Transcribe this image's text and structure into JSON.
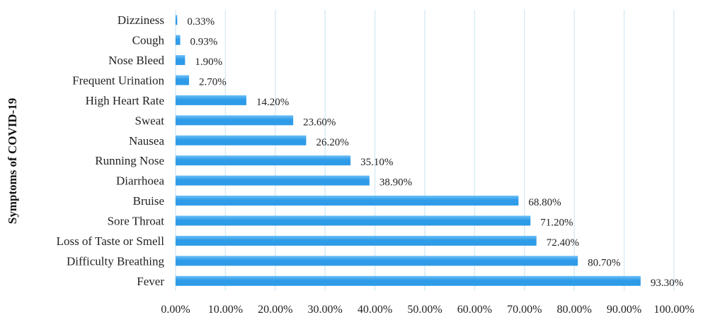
{
  "chart_data": {
    "type": "bar",
    "orientation": "horizontal",
    "title": "",
    "xlabel": "",
    "ylabel": "Symptoms of COVID-19",
    "categories": [
      "Fever",
      "Difficulty Breathing",
      "Loss of Taste or Smell",
      "Sore Throat",
      "Bruise",
      "Diarrhoea",
      "Running Nose",
      "Nausea",
      "Sweat",
      "High Heart Rate",
      "Frequent Urination",
      "Nose Bleed",
      "Cough",
      "Dizziness"
    ],
    "values": [
      93.3,
      80.7,
      72.4,
      71.2,
      68.8,
      38.9,
      35.1,
      26.2,
      23.6,
      14.2,
      2.7,
      1.9,
      0.93,
      0.33
    ],
    "data_labels": [
      "93.30%",
      "80.70%",
      "72.40%",
      "71.20%",
      "68.80%",
      "38.90%",
      "35.10%",
      "26.20%",
      "23.60%",
      "14.20%",
      "2.70%",
      "1.90%",
      "0.93%",
      "0.33%"
    ],
    "xlim": [
      0,
      100
    ],
    "xticks": [
      "0.00%",
      "10.00%",
      "20.00%",
      "30.00%",
      "40.00%",
      "50.00%",
      "60.00%",
      "70.00%",
      "80.00%",
      "90.00%",
      "100.00%"
    ],
    "grid": true,
    "legend": "none",
    "colors": {
      "bar": "#2e9be8",
      "bar_top": "#6cc0f7",
      "grid": "#d9ecf5"
    }
  }
}
